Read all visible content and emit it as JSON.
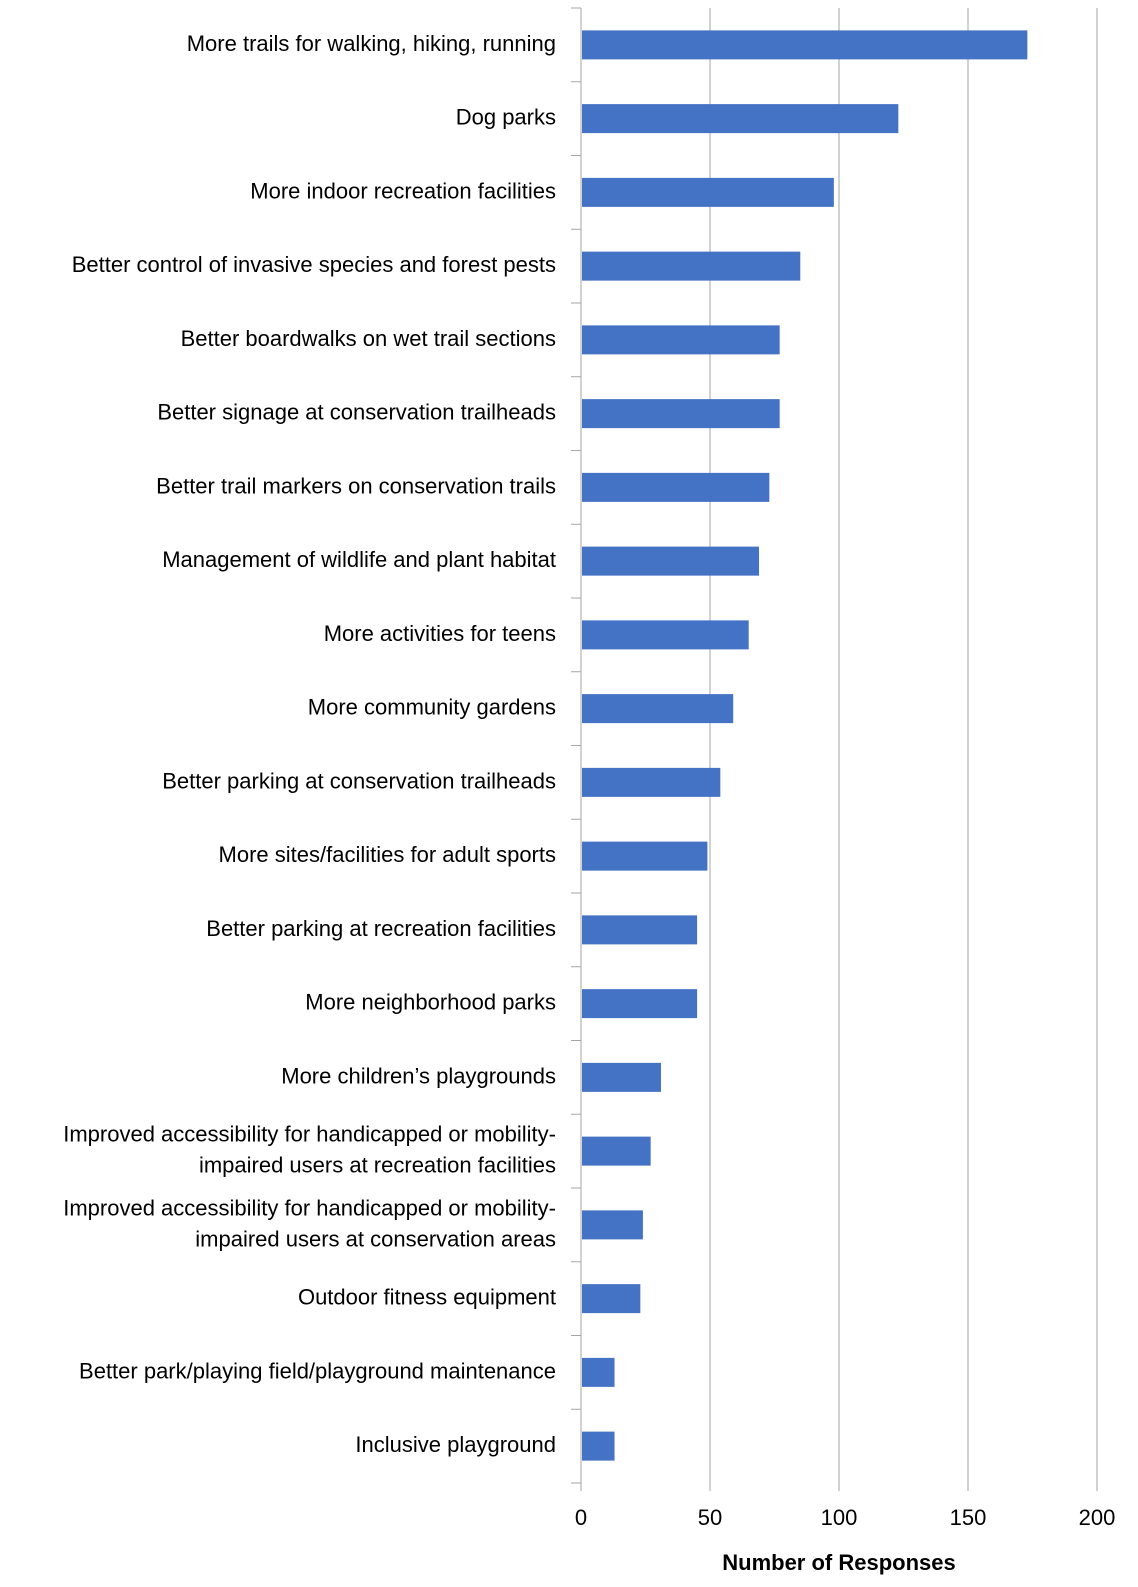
{
  "chart_data": {
    "type": "bar",
    "orientation": "horizontal",
    "categories": [
      "More trails for walking, hiking, running",
      "Dog parks",
      "More indoor recreation facilities",
      "Better control of invasive species and forest pests",
      "Better boardwalks on wet trail sections",
      "Better signage at conservation trailheads",
      "Better trail markers on conservation trails",
      "Management of wildlife and plant habitat",
      "More activities for teens",
      "More community gardens",
      "Better parking at conservation trailheads",
      "More sites/facilities for adult sports",
      "Better parking at recreation facilities",
      "More neighborhood parks",
      "More children’s playgrounds",
      "Improved accessibility for handicapped or mobility-impaired users at recreation facilities",
      "Improved accessibility for handicapped or mobility-impaired users at conservation areas",
      "Outdoor fitness equipment",
      "Better park/playing field/playground maintenance",
      "Inclusive playground"
    ],
    "category_label_lines": [
      [
        "More trails for walking, hiking, running"
      ],
      [
        "Dog parks"
      ],
      [
        "More indoor recreation facilities"
      ],
      [
        "Better control of invasive species and forest pests"
      ],
      [
        "Better boardwalks on wet trail sections"
      ],
      [
        "Better signage at conservation trailheads"
      ],
      [
        "Better trail markers on conservation trails"
      ],
      [
        "Management of wildlife and plant habitat"
      ],
      [
        "More activities for teens"
      ],
      [
        "More community gardens"
      ],
      [
        "Better parking at conservation trailheads"
      ],
      [
        "More sites/facilities for adult sports"
      ],
      [
        "Better parking at recreation facilities"
      ],
      [
        "More neighborhood parks"
      ],
      [
        "More children’s playgrounds"
      ],
      [
        "Improved accessibility for handicapped or mobility-",
        "impaired users at recreation facilities"
      ],
      [
        "Improved accessibility for handicapped or mobility-",
        "impaired users at conservation areas"
      ],
      [
        "Outdoor fitness equipment"
      ],
      [
        "Better park/playing field/playground maintenance"
      ],
      [
        "Inclusive playground"
      ]
    ],
    "values": [
      173,
      123,
      98,
      85,
      77,
      77,
      73,
      69,
      65,
      59,
      54,
      49,
      45,
      45,
      31,
      27,
      24,
      23,
      13,
      13
    ],
    "xlabel": "Number of Responses",
    "ylabel": "",
    "xlim": [
      0,
      200
    ],
    "xticks": [
      0,
      50,
      100,
      150,
      200
    ],
    "grid": true,
    "legend": "none",
    "bar_color": "#4472C4",
    "grid_color": "#A6A6A6",
    "axis_color": "#A6A6A6"
  }
}
